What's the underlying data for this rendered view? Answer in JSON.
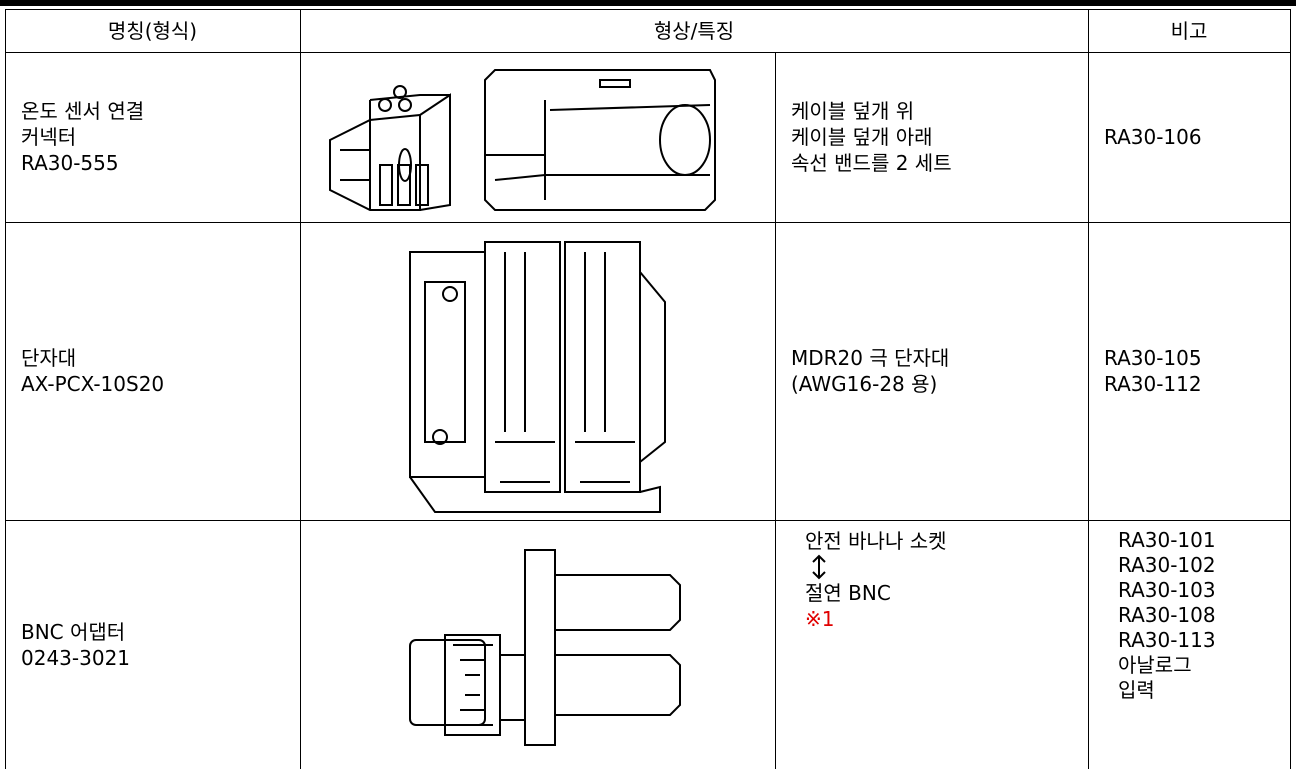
{
  "table": {
    "header": [
      "명칭(형식)",
      "형상/특징",
      "비고"
    ],
    "rows": [
      {
        "name": [
          "온도 센서 연결",
          "커넥터",
          "RA30-555"
        ],
        "description": [
          "케이블 덮개 위",
          "케이블 덮개 아래",
          "속선 밴드를 2 세트"
        ],
        "remarks": [
          "RA30-106"
        ]
      },
      {
        "name": [
          "단자대",
          "AX-PCX-10S20"
        ],
        "description": [
          "MDR20 극 단자대",
          "(AWG16-28 용)"
        ],
        "remarks": [
          "RA30-105",
          "RA30-112"
        ]
      },
      {
        "name": [
          "BNC 어댑터",
          "0243-3021"
        ],
        "description": [
          "안전 바나나 소켓",
          "절연 BNC"
        ],
        "note": "※1",
        "remarks": [
          "RA30-101",
          "RA30-102",
          "RA30-103",
          "RA30-108",
          "RA30-113",
          "아날로그",
          "입력"
        ]
      }
    ]
  }
}
